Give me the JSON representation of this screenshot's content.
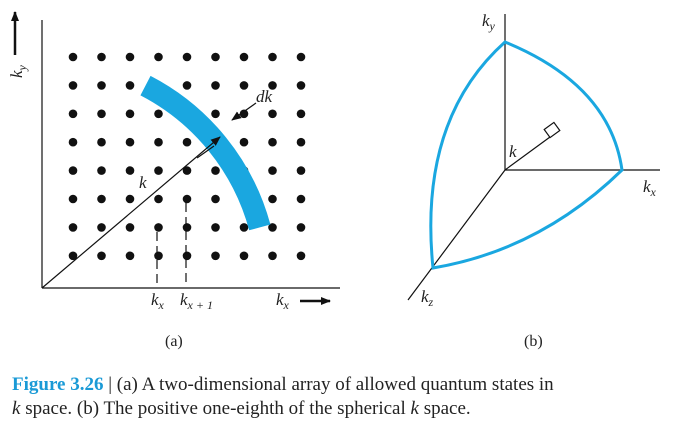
{
  "panel_a": {
    "y_axis_label": {
      "base": "k",
      "sub": "y"
    },
    "x_axis_label": {
      "base": "k",
      "sub": "x"
    },
    "tick_1": {
      "base": "k",
      "sub": "x"
    },
    "tick_2": {
      "base": "k",
      "sub": "x + 1"
    },
    "vector_label": "k",
    "band_label": "dk",
    "caption": "(a)"
  },
  "panel_b": {
    "y_axis_label": {
      "base": "k",
      "sub": "y"
    },
    "x_axis_label": {
      "base": "k",
      "sub": "x"
    },
    "z_axis_label": {
      "base": "k",
      "sub": "z"
    },
    "vector_label": "k",
    "caption": "(b)"
  },
  "figure_caption": {
    "label": "Figure 3.26",
    "line1": " | (a) A two-dimensional array of allowed quantum states in",
    "line2": [
      "k",
      " space. (b) The positive one-eighth of the spherical ",
      "k",
      " space."
    ]
  }
}
